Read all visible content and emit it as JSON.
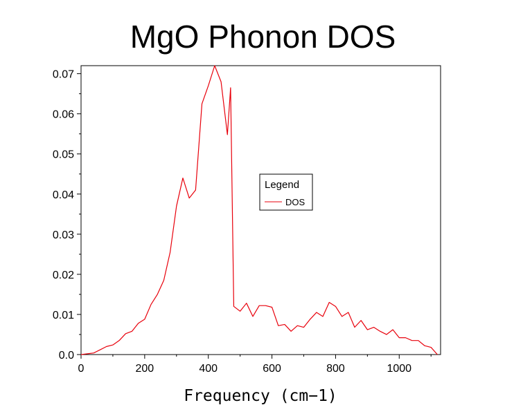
{
  "chart_data": {
    "type": "line",
    "title": "MgO Phonon DOS",
    "xlabel": "Frequency (cm−1)",
    "ylabel": "",
    "xlim": [
      0,
      1130
    ],
    "ylim": [
      0,
      0.072
    ],
    "xticks": [
      0,
      200,
      400,
      600,
      800,
      1000
    ],
    "xtick_labels": [
      "0",
      "200",
      "400",
      "600",
      "800",
      "1000"
    ],
    "yticks": [
      0,
      0.01,
      0.02,
      0.03,
      0.04,
      0.05,
      0.06,
      0.07
    ],
    "ytick_labels": [
      "0.0",
      "0.01",
      "0.02",
      "0.03",
      "0.04",
      "0.05",
      "0.06",
      "0.07"
    ],
    "grid": false,
    "legend": {
      "title": "Legend",
      "placement": "center-right"
    },
    "series": [
      {
        "name": "DOS",
        "color": "#e8000b",
        "x": [
          0,
          20,
          40,
          60,
          80,
          100,
          120,
          140,
          160,
          180,
          200,
          220,
          240,
          260,
          280,
          300,
          320,
          340,
          360,
          380,
          400,
          420,
          440,
          460,
          470,
          480,
          500,
          520,
          540,
          560,
          580,
          600,
          620,
          640,
          660,
          680,
          700,
          720,
          740,
          760,
          780,
          800,
          820,
          840,
          860,
          880,
          900,
          920,
          940,
          960,
          980,
          1000,
          1020,
          1040,
          1060,
          1080,
          1100,
          1120
        ],
        "y": [
          0,
          0.0002,
          0.0004,
          0.0012,
          0.002,
          0.0024,
          0.0035,
          0.0052,
          0.0058,
          0.0078,
          0.0088,
          0.0125,
          0.015,
          0.0185,
          0.0255,
          0.037,
          0.044,
          0.039,
          0.041,
          0.0625,
          0.067,
          0.072,
          0.068,
          0.0548,
          0.0665,
          0.012,
          0.0108,
          0.0128,
          0.0095,
          0.0122,
          0.0122,
          0.0118,
          0.0072,
          0.0075,
          0.0058,
          0.0072,
          0.0068,
          0.0088,
          0.0105,
          0.0095,
          0.013,
          0.012,
          0.0095,
          0.0105,
          0.0068,
          0.0085,
          0.0062,
          0.0068,
          0.0058,
          0.005,
          0.0062,
          0.0042,
          0.0042,
          0.0035,
          0.0035,
          0.0022,
          0.0018,
          0
        ]
      }
    ]
  }
}
